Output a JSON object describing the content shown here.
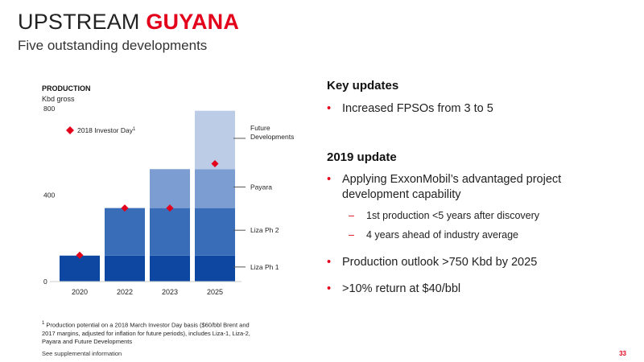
{
  "header": {
    "title_part1": "UPSTREAM",
    "title_part2": "GUYANA",
    "subtitle": "Five outstanding developments"
  },
  "chart_data": {
    "type": "bar",
    "title": "PRODUCTION",
    "ylabel": "Kbd gross",
    "categories": [
      "2020",
      "2022",
      "2023",
      "2025"
    ],
    "ylim": [
      0,
      800
    ],
    "yticks": [
      "0",
      "400",
      "800"
    ],
    "stacked": true,
    "series": [
      {
        "name": "Liza Ph 1",
        "values": [
          120,
          120,
          120,
          120
        ],
        "color": "#0d47a1"
      },
      {
        "name": "Liza Ph 2",
        "values": [
          0,
          220,
          220,
          220
        ],
        "color": "#3a6db8"
      },
      {
        "name": "Payara",
        "values": [
          0,
          0,
          180,
          180
        ],
        "color": "#7c9dd2"
      },
      {
        "name": "Future Developments",
        "values": [
          0,
          0,
          0,
          270
        ],
        "color": "#bccbe6"
      }
    ],
    "investor_day": {
      "name": "2018 Investor Day",
      "superscript": "1",
      "values": [
        122,
        340,
        340,
        545
      ],
      "color": "#e3001b"
    },
    "grid": false,
    "legend": "right"
  },
  "right": {
    "key_heading": "Key updates",
    "key_bullets": [
      "Increased FPSOs from 3 to 5"
    ],
    "update_heading": "2019 update",
    "update_bullet1_line1": "Applying ExxonMobil’s advantaged project",
    "update_bullet1_line2": "development capability",
    "sub_bullets": [
      "1st production <5 years after discovery",
      "4 years ahead of industry average"
    ],
    "update_bullet2": "Production outlook >750 Kbd by 2025",
    "update_bullet3": ">10% return at $40/bbl"
  },
  "footer": {
    "footnote_mark": "1",
    "footnote_text": " Production potential on a 2018 March Investor Day basis ($60/bbl Brent and 2017 margins, adjusted for inflation for future periods), includes Liza-1, Liza-2, Payara and Future Developments",
    "supplemental": "See supplemental information",
    "page_number": "33"
  }
}
